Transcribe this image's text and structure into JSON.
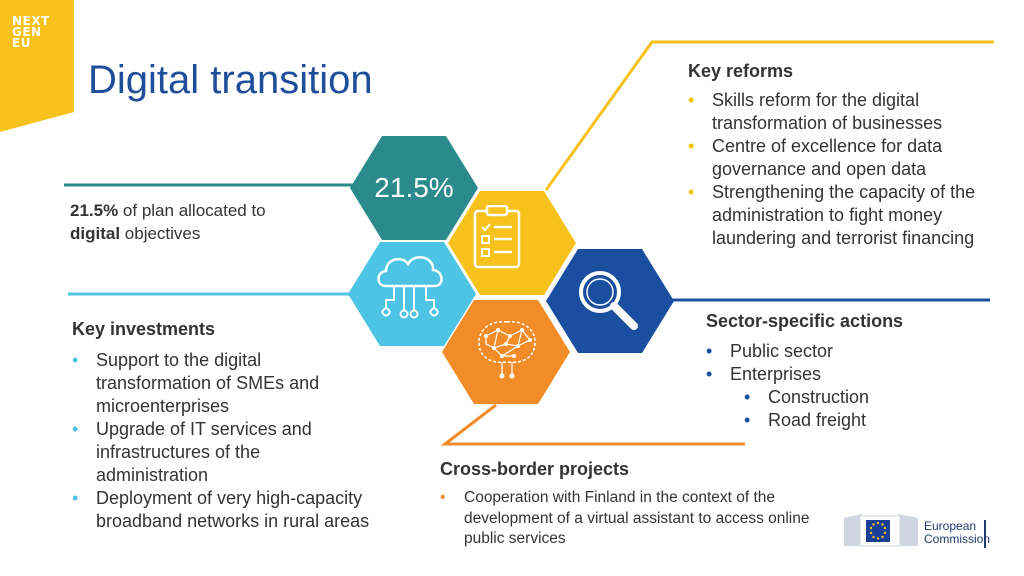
{
  "logo": {
    "line1": "NEXT",
    "line2": "GEN",
    "line3": "EU"
  },
  "title": "Digital transition",
  "percentage": {
    "value": "21.5%",
    "text_bold": "21.5%",
    "text_1": " of plan allocated to ",
    "text_bold_2": "digital",
    "text_2": " objectives"
  },
  "key_reforms": {
    "heading": "Key reforms",
    "items": [
      "Skills reform for the digital transformation of businesses",
      "Centre of excellence for data governance and open data",
      "Strengthening the capacity of the administration to fight money laundering and terrorist financing"
    ]
  },
  "key_investments": {
    "heading": "Key investments",
    "items": [
      "Support to the digital transformation of SMEs and microenterprises",
      "Upgrade of IT services and infrastructures of the administration",
      "Deployment of very high-capacity broadband networks in rural areas"
    ]
  },
  "sector_actions": {
    "heading": "Sector-specific actions",
    "items": [
      "Public sector",
      "Enterprises"
    ],
    "subitems": [
      "Construction",
      "Road freight"
    ]
  },
  "cross_border": {
    "heading": "Cross-border projects",
    "items": [
      "Cooperation with Finland in the context of the development of a virtual assistant to access online public services"
    ]
  },
  "commission": {
    "line1": "European",
    "line2": "Commission"
  },
  "colors": {
    "teal": "#2a8a8c",
    "yellow": "#f6c21b",
    "navy": "#1a4fa0",
    "cyan": "#4dc4e3",
    "orange": "#f28c28",
    "title_blue": "#1f4e9a"
  },
  "icons": [
    "clipboard-checklist-icon",
    "magnifier-icon",
    "cloud-circuit-icon",
    "ai-brain-icon"
  ]
}
